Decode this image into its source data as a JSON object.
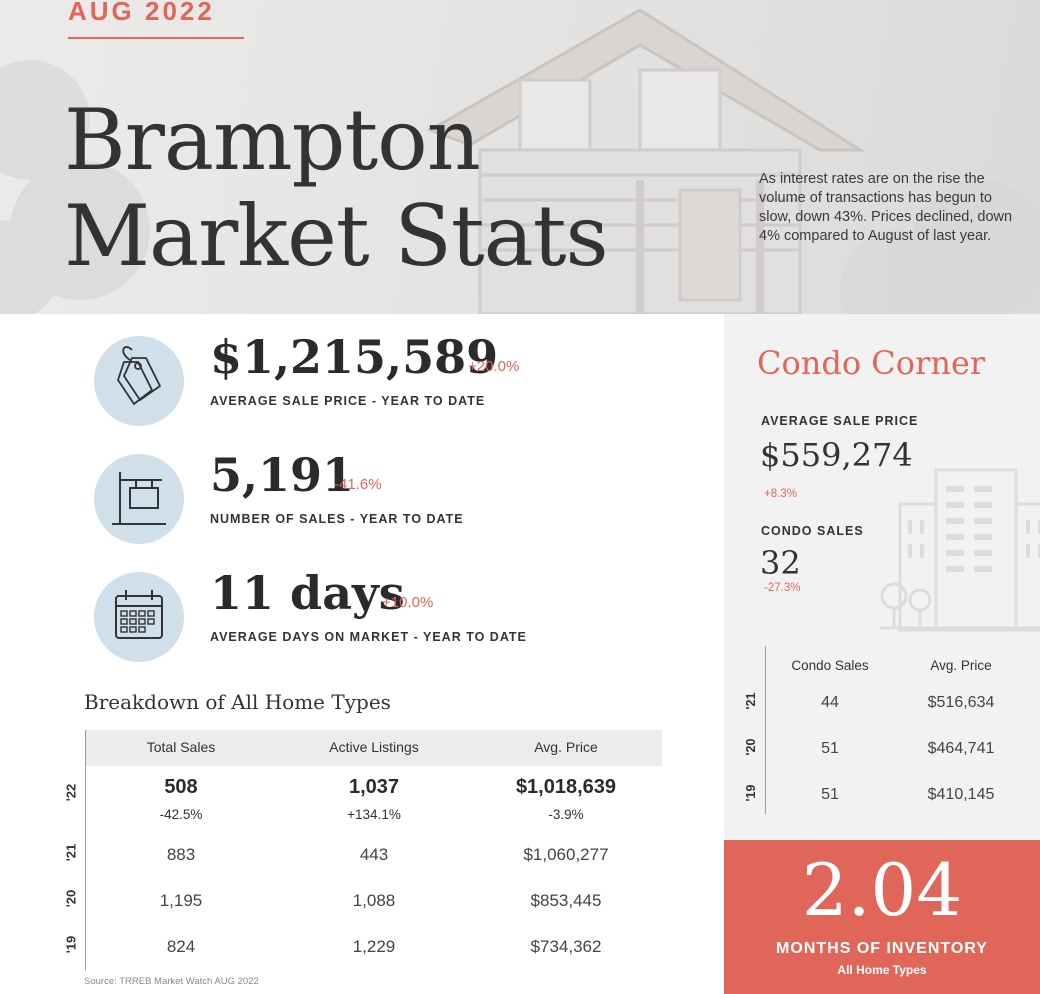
{
  "header": {
    "month": "AUG 2022",
    "title_line1": "Brampton",
    "title_line2": "Market Stats",
    "intro": "As interest rates are on the rise the volume of transactions has begun to slow, down 43%.  Prices declined, down 4% compared to August of last year."
  },
  "stats": [
    {
      "icon": "price-tag-icon",
      "value": "$1,215,589",
      "change": "+20.0%",
      "label": "AVERAGE SALE PRICE - YEAR TO DATE"
    },
    {
      "icon": "for-sale-sign-icon",
      "value": "5,191",
      "change": "-41.6%",
      "label": "NUMBER OF SALES - YEAR TO DATE"
    },
    {
      "icon": "calendar-icon",
      "value": "11 days",
      "change": "+10.0%",
      "label": "AVERAGE DAYS ON MARKET - YEAR TO DATE"
    }
  ],
  "breakdown": {
    "title": "Breakdown of All Home Types",
    "columns": [
      "Total Sales",
      "Active Listings",
      "Avg. Price"
    ],
    "current": {
      "year": "'22",
      "values": [
        "508",
        "1,037",
        "$1,018,639"
      ],
      "changes": [
        "-42.5%",
        "+134.1%",
        "-3.9%"
      ]
    },
    "rows": [
      {
        "year": "'21",
        "values": [
          "883",
          "443",
          "$1,060,277"
        ]
      },
      {
        "year": "'20",
        "values": [
          "1,195",
          "1,088",
          "$853,445"
        ]
      },
      {
        "year": "'19",
        "values": [
          "824",
          "1,229",
          "$734,362"
        ]
      }
    ],
    "source": "Source: TRREB Market Watch AUG 2022"
  },
  "condo": {
    "title": "Condo Corner",
    "avg_price_label": "AVERAGE SALE PRICE",
    "avg_price": "$559,274",
    "avg_price_change": "+8.3%",
    "sales_label": "CONDO SALES",
    "sales": "32",
    "sales_change": "-27.3%",
    "columns": [
      "Condo Sales",
      "Avg. Price"
    ],
    "rows": [
      {
        "year": "'21",
        "values": [
          "44",
          "$516,634"
        ]
      },
      {
        "year": "'20",
        "values": [
          "51",
          "$464,741"
        ]
      },
      {
        "year": "'19",
        "values": [
          "51",
          "$410,145"
        ]
      }
    ]
  },
  "inventory": {
    "value": "2.04",
    "label": "MONTHS OF INVENTORY",
    "sublabel": "All Home Types"
  },
  "colors": {
    "accent": "#e0665a",
    "icon_bg": "#cfe0ea",
    "panel_bg": "#f2f2f2"
  }
}
